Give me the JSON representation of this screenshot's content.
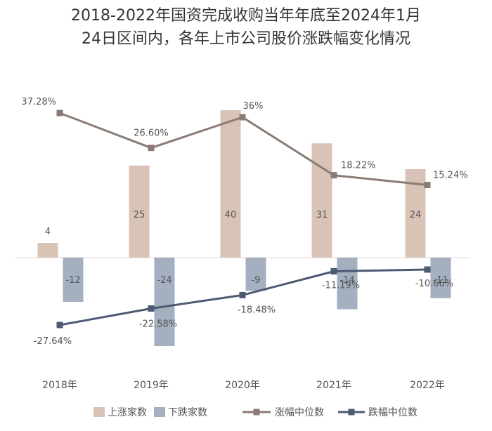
{
  "title_lines": [
    "2018-2022年国资完成收购当年年底至2024年1月",
    "24日区间内，各年上市公司股价涨跌幅变化情况"
  ],
  "chart_data": {
    "type": "bar",
    "title": "2018-2022年国资完成收购当年年底至2024年1月24日区间内，各年上市公司股价涨跌幅变化情况",
    "categories": [
      "2018年",
      "2019年",
      "2020年",
      "2021年",
      "2022年"
    ],
    "series": [
      {
        "name": "上涨家数",
        "type": "bar",
        "values": [
          4,
          25,
          40,
          31,
          24
        ],
        "labels": [
          "4",
          "25",
          "40",
          "31",
          "24"
        ],
        "color": "#D9C3B6"
      },
      {
        "name": "下跌家数",
        "type": "bar",
        "values": [
          -12,
          -24,
          -9,
          -14,
          -11
        ],
        "labels": [
          "-12",
          "-24",
          "-9",
          "-14",
          "-11"
        ],
        "color": "#A4AFC0"
      },
      {
        "name": "涨幅中位数",
        "type": "line",
        "values": [
          37.28,
          26.6,
          36.0,
          18.22,
          15.24
        ],
        "labels": [
          "37.28%",
          "26.60%",
          "36%",
          "18.22%",
          "15.24%"
        ],
        "color": "#8A7B75"
      },
      {
        "name": "跌幅中位数",
        "type": "line",
        "values": [
          -27.64,
          -22.58,
          -18.48,
          -11.19,
          -10.66
        ],
        "labels": [
          "-27.64%",
          "-22.58%",
          "-18.48%",
          "-11.19%",
          "-10.66%"
        ],
        "color": "#4C5A72"
      }
    ],
    "legend_position": "bottom",
    "grid": false
  }
}
